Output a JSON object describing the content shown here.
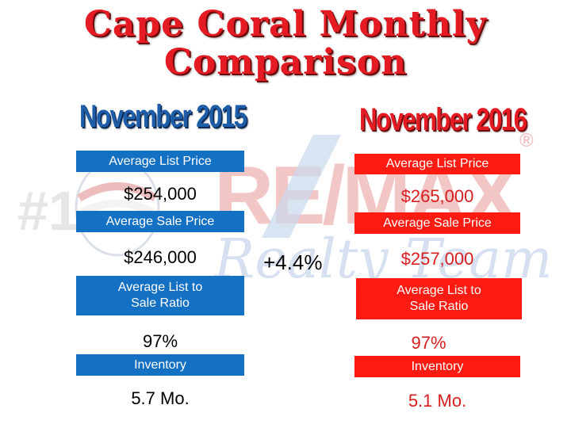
{
  "title": {
    "line1": "Cape Coral Monthly",
    "line2": "Comparison"
  },
  "watermark": {
    "brand": "RE/MAX",
    "registered": "®",
    "script": "Realty Team",
    "number": "#1"
  },
  "left": {
    "heading": "November 2015",
    "color": "#1470c2",
    "avg_list_label": "Average List Price",
    "avg_list_value": "$254,000",
    "avg_sale_label": "Average Sale Price",
    "avg_sale_value": "$246,000",
    "ratio_label_1": "Average List to",
    "ratio_label_2": "Sale Ratio",
    "ratio_value": "97%",
    "inventory_label": "Inventory",
    "inventory_value": "5.7 Mo."
  },
  "change": "+4.4%",
  "right": {
    "heading": "November 2016",
    "color": "#fe1b12",
    "avg_list_label": "Average List Price",
    "avg_list_value": "$265,000",
    "avg_sale_label": "Average Sale Price",
    "avg_sale_value": "$257,000",
    "ratio_label_1": "Average List to",
    "ratio_label_2": "Sale Ratio",
    "ratio_value": "97%",
    "inventory_label": "Inventory",
    "inventory_value": "5.1 Mo."
  }
}
